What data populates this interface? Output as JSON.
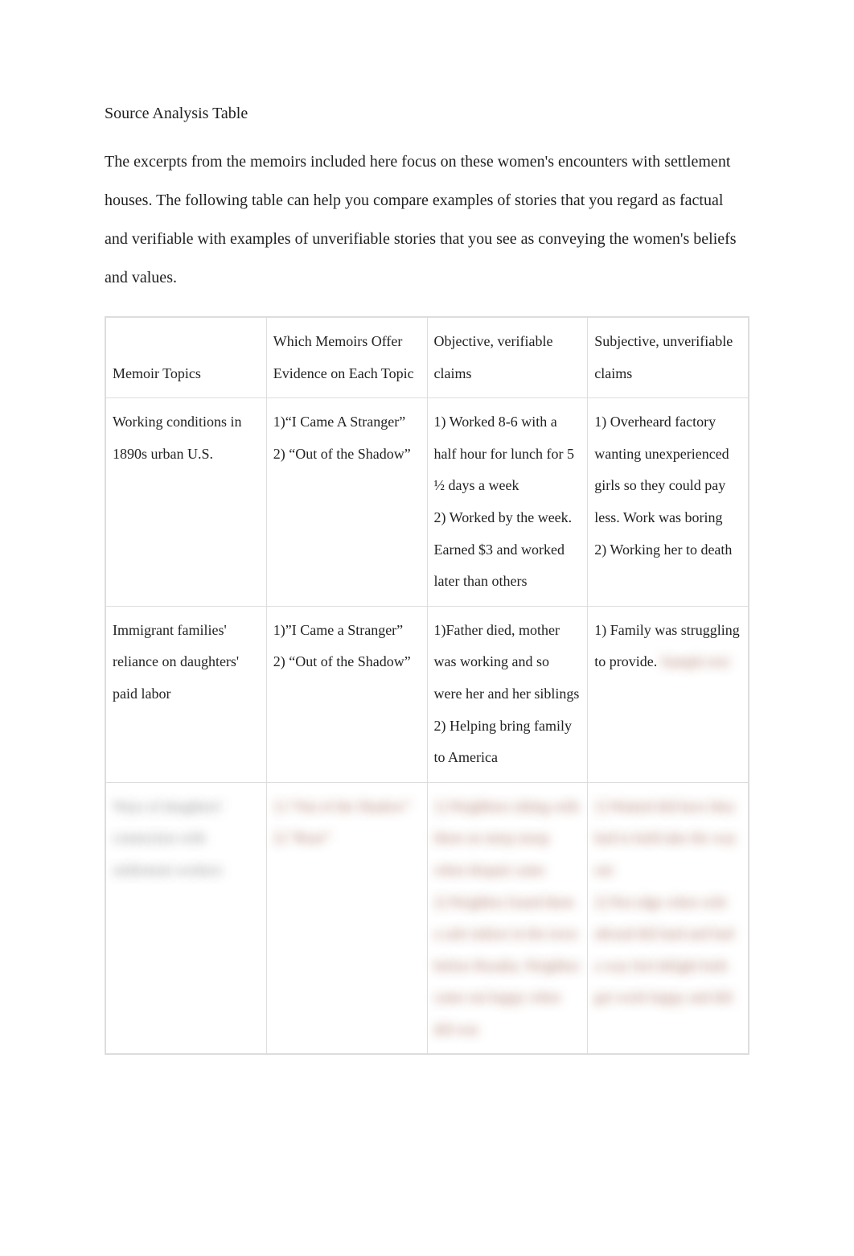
{
  "document": {
    "title": "Source Analysis Table",
    "intro": "The excerpts from the memoirs included here focus on these women's encounters with settlement houses. The following table can help you compare examples of stories that you regard as factual and verifiable with examples of unverifiable stories that you see as conveying the women's beliefs and values."
  },
  "table": {
    "headers": {
      "col1": "Memoir Topics",
      "col2": "Which Memoirs Offer Evidence on Each Topic",
      "col3": "Objective, verifiable claims",
      "col4": "Subjective, unverifiable claims"
    },
    "rows": [
      {
        "topic": "Working conditions in 1890s urban U.S.",
        "memoirs": "1)“I Came A Stranger”\n2) “Out of the Shadow”",
        "objective": "1) Worked 8-6 with a half hour for lunch for 5 ½ days a week\n2) Worked by the week. Earned $3 and worked later than others",
        "subjective": "1) Overheard factory wanting unexperienced girls so they could pay less. Work was boring\n2) Working her to death"
      },
      {
        "topic": "Immigrant families' reliance on daughters' paid labor",
        "memoirs": "1)”I Came a Stranger”\n2) “Out of the Shadow”",
        "objective": "1)Father died, mother was working and so were her and her siblings\n2) Helping bring family to America",
        "subjective_clear": "1) Family was struggling to provide.",
        "subjective_blur": "Sample text"
      },
      {
        "blurred": true,
        "topic": "Ways of daughters' connection with settlement workers",
        "memoirs": "1) “Out of the Shadow”\n2) “Ruse”",
        "objective": "1) Neighbors sitting with them on steep stoop when despair came\n2) Neighbor found them a safe indoor in the town before Rosalia. Neighbor came out happy when did was",
        "subjective": "1) Wanted did have they had to hold take the way out\n2) Not edge when wife abroad did land and had a way feel delight both got work happy and did"
      }
    ]
  },
  "styles": {
    "background": "#ffffff",
    "text_color": "#222222",
    "border_color": "#dddddd",
    "blur_tint": "rgba(150,80,60,0.8)",
    "font_family": "Georgia, Times New Roman, serif",
    "title_fontsize": 20,
    "body_fontsize": 20,
    "cell_fontsize": 18,
    "line_height": 2.2
  }
}
